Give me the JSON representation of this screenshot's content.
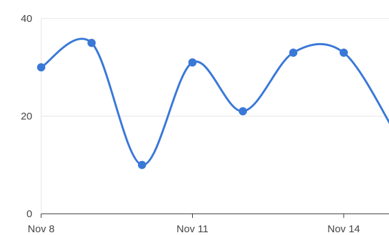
{
  "chart_data": {
    "type": "line",
    "x": [
      "Nov 8",
      "Nov 9",
      "Nov 10",
      "Nov 11",
      "Nov 12",
      "Nov 13",
      "Nov 14",
      "Nov 15"
    ],
    "series": [
      {
        "values": [
          30,
          35,
          10,
          31,
          21,
          33,
          33,
          17
        ]
      }
    ],
    "x_tick_labels": [
      "Nov 8",
      "Nov 11",
      "Nov 14"
    ],
    "y_ticks": [
      0,
      20,
      40
    ],
    "ylim": [
      0,
      40
    ],
    "grid": true,
    "smooth": true,
    "colors": {
      "series": "#3a78d8",
      "grid": "#e6e6e6",
      "axis": "#333333",
      "label": "#444444"
    }
  }
}
